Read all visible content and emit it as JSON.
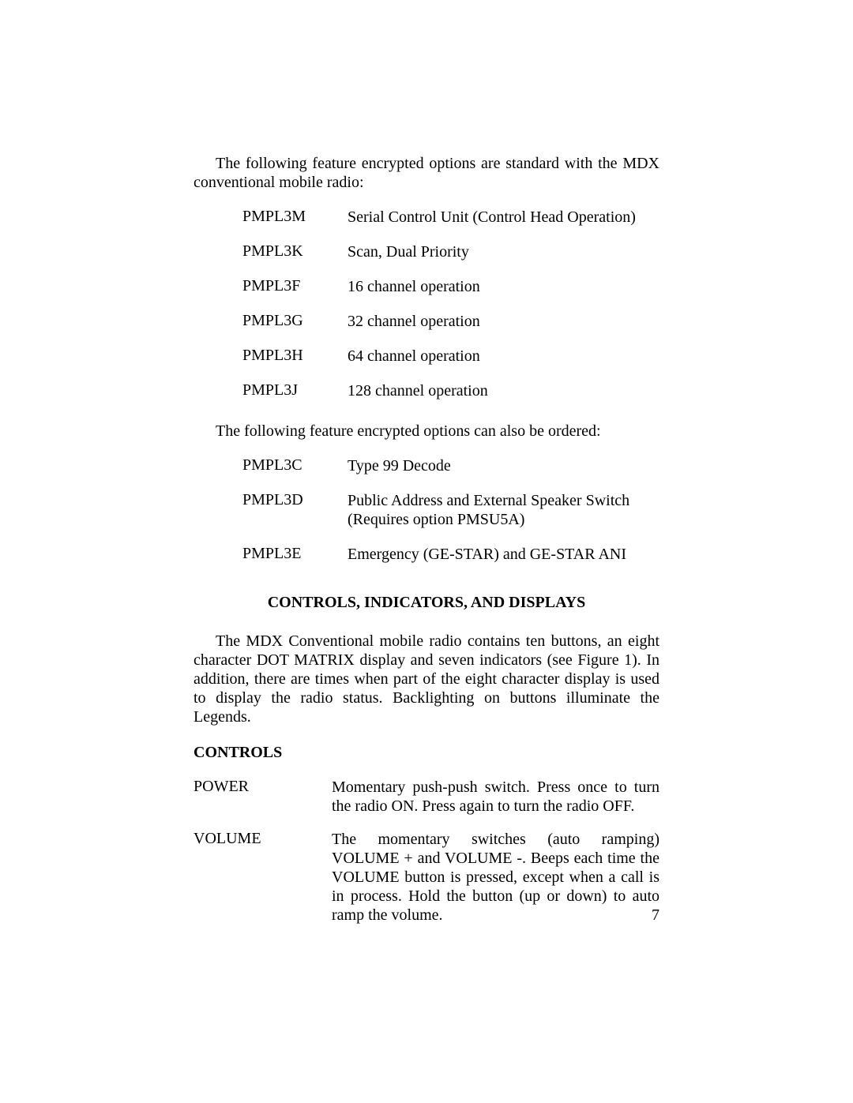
{
  "intro1": "The following feature encrypted options are standard with the MDX conventional mobile radio:",
  "options1": [
    {
      "code": "PMPL3M",
      "desc": "Serial Control Unit (Control Head Operation)"
    },
    {
      "code": "PMPL3K",
      "desc": "Scan, Dual Priority"
    },
    {
      "code": "PMPL3F",
      "desc": "16 channel operation"
    },
    {
      "code": "PMPL3G",
      "desc": "32 channel operation"
    },
    {
      "code": "PMPL3H",
      "desc": "64 channel operation"
    },
    {
      "code": "PMPL3J",
      "desc": "128 channel operation"
    }
  ],
  "intro2": "The following feature encrypted options can also be ordered:",
  "options2": [
    {
      "code": "PMPL3C",
      "desc": "Type 99 Decode"
    },
    {
      "code": "PMPL3D",
      "desc": "Public Address and External Speaker Switch (Requires option PMSU5A)"
    },
    {
      "code": "PMPL3E",
      "desc": "Emergency (GE-STAR) and GE-STAR ANI"
    }
  ],
  "section_title": "CONTROLS, INDICATORS, AND DISPLAYS",
  "section_para": "The MDX Conventional mobile radio contains ten buttons, an eight character DOT MATRIX display and seven indicators (see Figure 1). In addition, there are times when part of the eight character display is used to display the radio status. Backlighting on buttons illuminate the Legends.",
  "subhead": "CONTROLS",
  "controls": [
    {
      "label": "POWER",
      "desc": "Momentary push-push switch. Press once to turn the radio ON. Press again to turn the radio OFF."
    },
    {
      "label": "VOLUME",
      "desc": "The momentary switches (auto ramping) VOLUME + and VOLUME -.  Beeps each time the VOLUME button is pressed, except when a call is in process. Hold the button (up or down) to auto ramp the volume."
    }
  ],
  "page_number": "7"
}
